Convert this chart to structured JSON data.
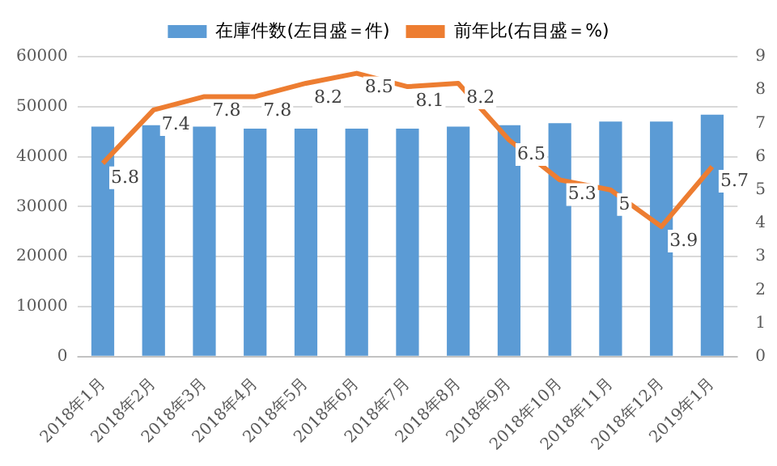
{
  "chart_data": {
    "type": "bar",
    "categories": [
      "2018年1月",
      "2018年2月",
      "2018年3月",
      "2018年4月",
      "2018年5月",
      "2018年6月",
      "2018年7月",
      "2018年8月",
      "2018年9月",
      "2018年10月",
      "2018年11月",
      "2018年12月",
      "2019年1月"
    ],
    "series": [
      {
        "name": "在庫件数(左目盛＝件)",
        "color": "#5b9bd5",
        "values": [
          46000,
          46300,
          46000,
          45600,
          45600,
          45600,
          45600,
          46000,
          46300,
          46700,
          47000,
          47000,
          48400
        ]
      },
      {
        "name": "前年比(右目盛＝%)",
        "type": "line",
        "axis": "y2",
        "color": "#ed7d31",
        "data_labels": true,
        "values": [
          5.8,
          7.4,
          7.8,
          7.8,
          8.2,
          8.5,
          8.1,
          8.2,
          6.5,
          5.3,
          5,
          3.9,
          5.7
        ]
      }
    ],
    "ylim": [
      0,
      60000
    ],
    "yticks": [
      0,
      10000,
      20000,
      30000,
      40000,
      50000,
      60000
    ],
    "y2lim": [
      0,
      9
    ],
    "y2ticks": [
      0,
      1,
      2,
      3,
      4,
      5,
      6,
      7,
      8,
      9
    ],
    "grid": "y",
    "legend": "top",
    "marker": "none",
    "line_style": "solid"
  }
}
